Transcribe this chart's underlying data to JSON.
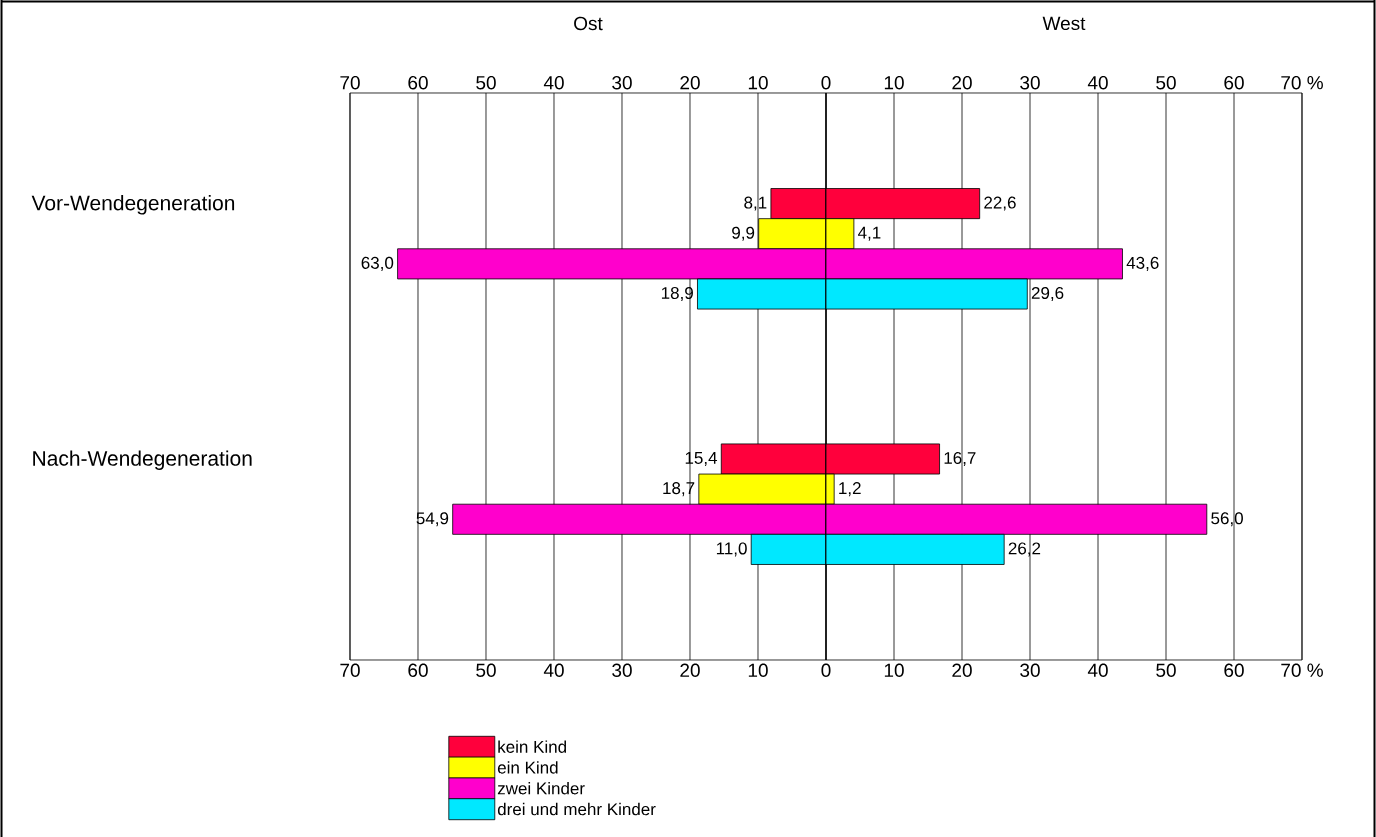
{
  "chart_data": [
    {
      "type": "bar",
      "orientation": "horizontal",
      "title": "Ost",
      "categories": [
        "Vor-Wendegeneration",
        "Nach-Wendegeneration"
      ],
      "series": [
        {
          "name": "kein Kind",
          "color": "#ff003c",
          "values": [
            8.1,
            15.4
          ],
          "value_labels": [
            "8,1",
            "15,4"
          ]
        },
        {
          "name": "ein Kind",
          "color": "#ffff00",
          "values": [
            9.9,
            18.7
          ],
          "value_labels": [
            "9,9",
            "18,7"
          ]
        },
        {
          "name": "zwei Kinder",
          "color": "#ff00cc",
          "values": [
            63.0,
            54.9
          ],
          "value_labels": [
            "63,0",
            "54,9"
          ]
        },
        {
          "name": "drei und mehr Kinder",
          "color": "#00e8ff",
          "values": [
            18.9,
            11.0
          ],
          "value_labels": [
            "18,9",
            "11,0"
          ]
        }
      ],
      "xlim": [
        70,
        0
      ],
      "xticks": [
        70,
        60,
        50,
        40,
        30,
        20,
        10,
        {
          "value": 0,
          "label": null
        }
      ],
      "x2lim": [
        70,
        0
      ],
      "x2ticks": [
        70,
        60,
        50,
        40,
        30,
        20,
        10
      ],
      "grid": "x",
      "legend": "bottom"
    },
    {
      "type": "bar",
      "orientation": "horizontal",
      "title": "West",
      "categories": [
        null,
        null
      ],
      "series": [
        {
          "color": "#ff003c",
          "values": [
            22.6,
            16.7
          ],
          "value_labels": [
            "22,6",
            "16,7"
          ]
        },
        {
          "color": "#ffff00",
          "values": [
            4.1,
            1.2
          ],
          "value_labels": [
            "4,1",
            "1,2"
          ]
        },
        {
          "color": "#ff00cc",
          "values": [
            43.6,
            56.0
          ],
          "value_labels": [
            "43,6",
            "56,0"
          ]
        },
        {
          "color": "#00e8ff",
          "values": [
            29.6,
            26.2
          ],
          "value_labels": [
            "29,6",
            "26,2"
          ]
        }
      ],
      "xlim": [
        0,
        70
      ],
      "xticks": [
        0,
        10,
        20,
        30,
        40,
        50,
        60,
        {
          "value": 70,
          "label": "70 %"
        }
      ],
      "x2lim": [
        0,
        70
      ],
      "x2ticks": [
        0,
        10,
        20,
        30,
        40,
        50,
        60,
        {
          "value": 70,
          "label": "70 %"
        }
      ],
      "tick_labels": "x",
      "grid": "x"
    }
  ]
}
